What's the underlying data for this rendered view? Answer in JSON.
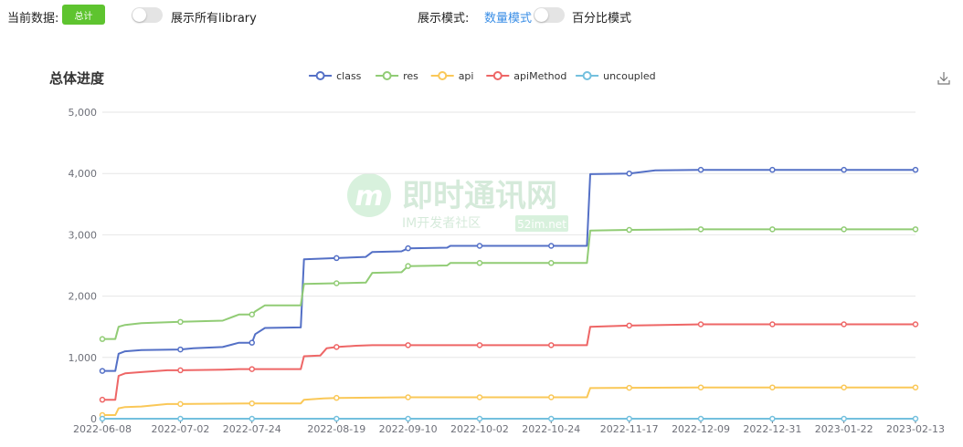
{
  "controls": {
    "current_data_label": "当前数据:",
    "total_button": "总计",
    "show_all_library_label": "展示所有library",
    "display_mode_label": "展示模式:",
    "count_mode_label": "数量模式",
    "percent_mode_label": "百分比模式",
    "show_all_library_on": false,
    "percent_mode_on": false
  },
  "watermark": {
    "main": "即时通讯网",
    "sub": "IM开发者社区",
    "site": "52im.net"
  },
  "icons": {
    "download": "download-icon"
  },
  "chart_data": {
    "type": "line",
    "title": "总体进度",
    "xlabel": "",
    "ylabel": "",
    "ylim": [
      0,
      5000
    ],
    "yticks": [
      "0",
      "1,000",
      "2,000",
      "3,000",
      "4,000",
      "5,000"
    ],
    "xticks": [
      "2022-06-08",
      "2022-07-02",
      "2022-07-24",
      "2022-08-19",
      "2022-09-10",
      "2022-10-02",
      "2022-10-24",
      "2022-11-17",
      "2022-12-09",
      "2022-12-31",
      "2023-01-22",
      "2023-02-13"
    ],
    "grid": true,
    "legend_position": "top-center",
    "series": [
      {
        "name": "class",
        "color": "#5470c6",
        "points": [
          [
            "2022-06-08",
            780
          ],
          [
            "2022-06-12",
            780
          ],
          [
            "2022-06-13",
            1060
          ],
          [
            "2022-06-15",
            1100
          ],
          [
            "2022-06-20",
            1120
          ],
          [
            "2022-07-02",
            1130
          ],
          [
            "2022-07-06",
            1150
          ],
          [
            "2022-07-15",
            1170
          ],
          [
            "2022-07-20",
            1240
          ],
          [
            "2022-07-24",
            1240
          ],
          [
            "2022-07-25",
            1380
          ],
          [
            "2022-07-28",
            1480
          ],
          [
            "2022-08-08",
            1490
          ],
          [
            "2022-08-09",
            2600
          ],
          [
            "2022-08-19",
            2620
          ],
          [
            "2022-08-28",
            2640
          ],
          [
            "2022-08-30",
            2720
          ],
          [
            "2022-09-08",
            2730
          ],
          [
            "2022-09-10",
            2780
          ],
          [
            "2022-09-22",
            2790
          ],
          [
            "2022-09-23",
            2820
          ],
          [
            "2022-10-02",
            2820
          ],
          [
            "2022-10-24",
            2820
          ],
          [
            "2022-11-04",
            2820
          ],
          [
            "2022-11-05",
            3990
          ],
          [
            "2022-11-17",
            4000
          ],
          [
            "2022-11-25",
            4050
          ],
          [
            "2022-12-09",
            4060
          ],
          [
            "2022-12-31",
            4060
          ],
          [
            "2023-01-22",
            4060
          ],
          [
            "2023-02-13",
            4060
          ]
        ],
        "markers": [
          "2022-06-08",
          "2022-07-02",
          "2022-07-24",
          "2022-08-19",
          "2022-09-10",
          "2022-10-02",
          "2022-10-24",
          "2022-11-17",
          "2022-12-09",
          "2022-12-31",
          "2023-01-22",
          "2023-02-13"
        ]
      },
      {
        "name": "res",
        "color": "#91cc75",
        "points": [
          [
            "2022-06-08",
            1300
          ],
          [
            "2022-06-12",
            1300
          ],
          [
            "2022-06-13",
            1500
          ],
          [
            "2022-06-15",
            1530
          ],
          [
            "2022-06-20",
            1560
          ],
          [
            "2022-07-02",
            1580
          ],
          [
            "2022-07-15",
            1600
          ],
          [
            "2022-07-20",
            1700
          ],
          [
            "2022-07-24",
            1700
          ],
          [
            "2022-07-25",
            1750
          ],
          [
            "2022-07-28",
            1850
          ],
          [
            "2022-08-08",
            1850
          ],
          [
            "2022-08-09",
            2200
          ],
          [
            "2022-08-19",
            2210
          ],
          [
            "2022-08-28",
            2220
          ],
          [
            "2022-08-30",
            2380
          ],
          [
            "2022-09-08",
            2390
          ],
          [
            "2022-09-10",
            2490
          ],
          [
            "2022-09-22",
            2500
          ],
          [
            "2022-09-23",
            2540
          ],
          [
            "2022-10-02",
            2540
          ],
          [
            "2022-10-24",
            2540
          ],
          [
            "2022-11-04",
            2540
          ],
          [
            "2022-11-05",
            3070
          ],
          [
            "2022-11-17",
            3080
          ],
          [
            "2022-11-25",
            3085
          ],
          [
            "2022-12-09",
            3090
          ],
          [
            "2022-12-31",
            3090
          ],
          [
            "2023-01-22",
            3090
          ],
          [
            "2023-02-13",
            3090
          ]
        ],
        "markers": [
          "2022-06-08",
          "2022-07-02",
          "2022-07-24",
          "2022-08-19",
          "2022-09-10",
          "2022-10-02",
          "2022-10-24",
          "2022-11-17",
          "2022-12-09",
          "2022-12-31",
          "2023-01-22",
          "2023-02-13"
        ]
      },
      {
        "name": "api",
        "color": "#fac858",
        "points": [
          [
            "2022-06-08",
            60
          ],
          [
            "2022-06-12",
            60
          ],
          [
            "2022-06-13",
            170
          ],
          [
            "2022-06-15",
            190
          ],
          [
            "2022-06-20",
            200
          ],
          [
            "2022-06-28",
            240
          ],
          [
            "2022-07-02",
            240
          ],
          [
            "2022-07-24",
            250
          ],
          [
            "2022-08-08",
            250
          ],
          [
            "2022-08-09",
            310
          ],
          [
            "2022-08-15",
            330
          ],
          [
            "2022-08-19",
            340
          ],
          [
            "2022-09-10",
            350
          ],
          [
            "2022-10-02",
            350
          ],
          [
            "2022-10-24",
            350
          ],
          [
            "2022-11-04",
            350
          ],
          [
            "2022-11-05",
            500
          ],
          [
            "2022-11-17",
            505
          ],
          [
            "2022-12-09",
            510
          ],
          [
            "2022-12-31",
            510
          ],
          [
            "2023-01-22",
            510
          ],
          [
            "2023-02-13",
            510
          ]
        ],
        "markers": [
          "2022-06-08",
          "2022-07-02",
          "2022-07-24",
          "2022-08-19",
          "2022-09-10",
          "2022-10-02",
          "2022-10-24",
          "2022-11-17",
          "2022-12-09",
          "2022-12-31",
          "2023-01-22",
          "2023-02-13"
        ]
      },
      {
        "name": "apiMethod",
        "color": "#ee6666",
        "points": [
          [
            "2022-06-08",
            310
          ],
          [
            "2022-06-12",
            310
          ],
          [
            "2022-06-13",
            700
          ],
          [
            "2022-06-15",
            740
          ],
          [
            "2022-06-20",
            760
          ],
          [
            "2022-06-28",
            790
          ],
          [
            "2022-07-02",
            790
          ],
          [
            "2022-07-15",
            800
          ],
          [
            "2022-07-20",
            810
          ],
          [
            "2022-07-24",
            810
          ],
          [
            "2022-08-08",
            810
          ],
          [
            "2022-08-09",
            1020
          ],
          [
            "2022-08-14",
            1030
          ],
          [
            "2022-08-16",
            1150
          ],
          [
            "2022-08-19",
            1170
          ],
          [
            "2022-08-25",
            1190
          ],
          [
            "2022-08-30",
            1200
          ],
          [
            "2022-09-10",
            1200
          ],
          [
            "2022-10-02",
            1200
          ],
          [
            "2022-10-24",
            1200
          ],
          [
            "2022-11-04",
            1200
          ],
          [
            "2022-11-05",
            1500
          ],
          [
            "2022-11-17",
            1520
          ],
          [
            "2022-12-09",
            1540
          ],
          [
            "2022-12-31",
            1540
          ],
          [
            "2023-01-22",
            1540
          ],
          [
            "2023-02-13",
            1540
          ]
        ],
        "markers": [
          "2022-06-08",
          "2022-07-02",
          "2022-07-24",
          "2022-08-19",
          "2022-09-10",
          "2022-10-02",
          "2022-10-24",
          "2022-11-17",
          "2022-12-09",
          "2022-12-31",
          "2023-01-22",
          "2023-02-13"
        ]
      },
      {
        "name": "uncoupled",
        "color": "#73c0de",
        "points": [
          [
            "2022-06-08",
            0
          ],
          [
            "2023-02-13",
            0
          ]
        ],
        "markers": [
          "2022-06-08",
          "2022-07-02",
          "2022-07-24",
          "2022-08-19",
          "2022-09-10",
          "2022-10-02",
          "2022-10-24",
          "2022-11-17",
          "2022-12-09",
          "2022-12-31",
          "2023-01-22",
          "2023-02-13"
        ]
      }
    ]
  }
}
